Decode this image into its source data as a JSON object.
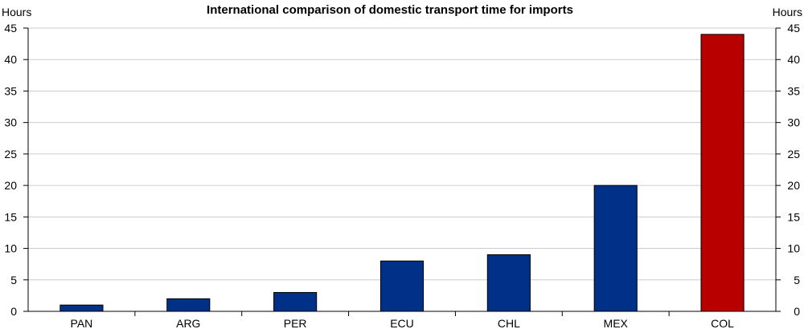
{
  "chart_data": {
    "type": "bar",
    "title": "International comparison of domestic transport time for imports",
    "ylabel_left": "Hours",
    "ylabel_right": "Hours",
    "xlabel": "",
    "categories": [
      "PAN",
      "ARG",
      "PER",
      "ECU",
      "CHL",
      "MEX",
      "COL"
    ],
    "values": [
      1,
      2,
      3,
      8,
      9,
      20,
      44
    ],
    "ylim": [
      0,
      45
    ],
    "yticks": [
      0,
      5,
      10,
      15,
      20,
      25,
      30,
      35,
      40,
      45
    ],
    "grid": true,
    "legend": "none",
    "colors": {
      "bar_default": "#003087",
      "bar_highlight": "#B80000",
      "gridline": "#CCCCCC",
      "axis": "#000000"
    },
    "highlight_category": "COL"
  }
}
